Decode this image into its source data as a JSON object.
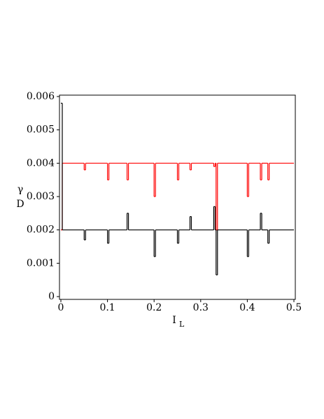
{
  "chart_data": {
    "type": "step",
    "xlabel": "I",
    "xlabel_sub": "L",
    "ylabel": "γ",
    "ylabel_sub": "D",
    "x": [
      0,
      0.003,
      0.05,
      0.053,
      0.1,
      0.103,
      0.142,
      0.145,
      0.2,
      0.203,
      0.25,
      0.253,
      0.277,
      0.28,
      0.328,
      0.331,
      0.333,
      0.336,
      0.4,
      0.403,
      0.428,
      0.431,
      0.444,
      0.447,
      0.5
    ],
    "series": [
      {
        "color": "#ff0000",
        "values": [
          0.002,
          0.004,
          0.0038,
          0.004,
          0.0035,
          0.004,
          0.0035,
          0.004,
          0.003,
          0.004,
          0.0035,
          0.004,
          0.0038,
          0.004,
          0.0039,
          0.004,
          0.002,
          0.004,
          0.003,
          0.004,
          0.0035,
          0.004,
          0.0035,
          0.004,
          0.004
        ]
      },
      {
        "color": "#000000",
        "values": [
          0.0058,
          0.002,
          0.0017,
          0.002,
          0.0016,
          0.002,
          0.0025,
          0.002,
          0.0012,
          0.002,
          0.0016,
          0.002,
          0.0024,
          0.002,
          0.0027,
          0.002,
          0.00065,
          0.002,
          0.0012,
          0.002,
          0.0025,
          0.002,
          0.0016,
          0.002,
          0.002
        ]
      }
    ],
    "xlim": [
      0,
      0.5
    ],
    "xticks": [
      0,
      0.1,
      0.2,
      0.3,
      0.4,
      0.5
    ],
    "ylim": [
      0,
      0.006
    ],
    "yticks": [
      0,
      0.001,
      0.002,
      0.003,
      0.004,
      0.005,
      0.006
    ]
  }
}
